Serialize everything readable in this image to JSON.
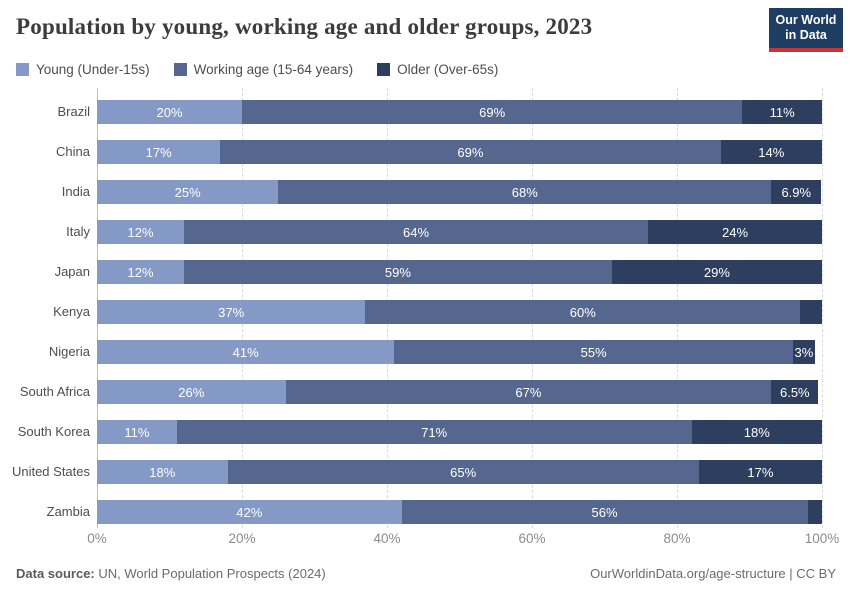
{
  "header": {
    "title": "Population by young, working age and older groups, 2023"
  },
  "logo": {
    "line1": "Our World",
    "line2": "in Data",
    "background_color": "#1d3d63",
    "accent_color": "#cc3232"
  },
  "legend": {
    "items": [
      {
        "label": "Young (Under-15s)",
        "color": "#8499c6"
      },
      {
        "label": "Working age (15-64 years)",
        "color": "#56678f"
      },
      {
        "label": "Older (Over-65s)",
        "color": "#2d3e5f"
      }
    ]
  },
  "chart_data": {
    "type": "bar",
    "stacked": true,
    "orientation": "horizontal",
    "title": "Population by young, working age and older groups, 2023",
    "xlim": [
      0,
      100
    ],
    "grid": true,
    "categories": [
      "Brazil",
      "China",
      "India",
      "Italy",
      "Japan",
      "Kenya",
      "Nigeria",
      "South Africa",
      "South Korea",
      "United States",
      "Zambia"
    ],
    "series": [
      {
        "name": "Young (Under-15s)",
        "color": "#8499c6",
        "values": [
          20,
          17,
          25,
          12,
          12,
          37,
          41,
          26,
          11,
          18,
          42
        ],
        "labels": [
          "20%",
          "17%",
          "25%",
          "12%",
          "12%",
          "37%",
          "41%",
          "26%",
          "11%",
          "18%",
          "42%"
        ]
      },
      {
        "name": "Working age (15-64 years)",
        "color": "#56678f",
        "values": [
          69,
          69,
          68,
          64,
          59,
          60,
          55,
          67,
          71,
          65,
          56
        ],
        "labels": [
          "69%",
          "69%",
          "68%",
          "64%",
          "59%",
          "60%",
          "55%",
          "67%",
          "71%",
          "65%",
          "56%"
        ]
      },
      {
        "name": "Older (Over-65s)",
        "color": "#2d3e5f",
        "values": [
          11,
          14,
          6.9,
          24,
          29,
          3,
          3,
          6.5,
          18,
          17,
          2
        ],
        "labels": [
          "11%",
          "14%",
          "6.9%",
          "24%",
          "29%",
          "",
          "3%",
          "6.5%",
          "18%",
          "17%",
          ""
        ]
      }
    ],
    "x_ticks": [
      {
        "value": 0,
        "label": "0%"
      },
      {
        "value": 20,
        "label": "20%"
      },
      {
        "value": 40,
        "label": "40%"
      },
      {
        "value": 60,
        "label": "60%"
      },
      {
        "value": 80,
        "label": "80%"
      },
      {
        "value": 100,
        "label": "100%"
      }
    ]
  },
  "footer": {
    "source_prefix": "Data source:",
    "source_text": " UN, World Population Prospects (2024)",
    "credit": "OurWorldinData.org/age-structure | CC BY"
  }
}
